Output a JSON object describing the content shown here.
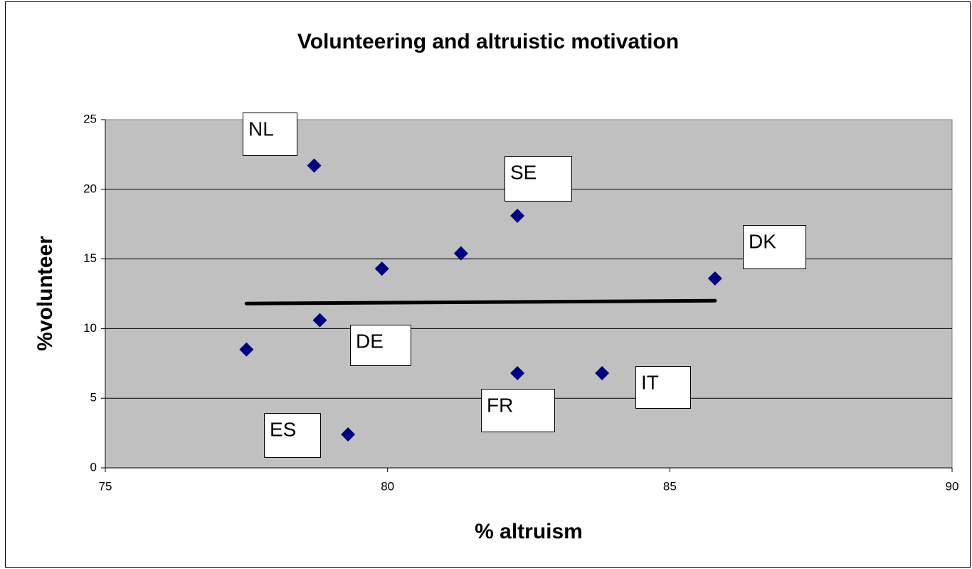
{
  "chart_data": {
    "type": "scatter",
    "title": "Volunteering and altruistic motivation",
    "xlabel": "% altruism",
    "ylabel": "%volunteer",
    "x": [
      77.5,
      78.7,
      78.8,
      79.3,
      79.9,
      81.3,
      82.3,
      82.3,
      83.8,
      85.8
    ],
    "series": [
      {
        "color": "#000080",
        "values": [
          8.5,
          21.7,
          10.6,
          2.4,
          14.3,
          15.4,
          18.1,
          6.8,
          6.8,
          13.6
        ]
      }
    ],
    "trendline": {
      "x": [
        77.5,
        85.8
      ],
      "values": [
        11.8,
        12.0
      ],
      "color": "#000000"
    },
    "annotations": [
      "NL",
      "SE",
      "DK",
      "DE",
      "IT",
      "FR",
      "ES"
    ],
    "xlim": [
      75,
      90
    ],
    "xticks": [
      75,
      80,
      85,
      90
    ],
    "ylim": [
      0,
      25
    ],
    "yticks": [
      0,
      5,
      10,
      15,
      20,
      25
    ],
    "grid": true,
    "plot_background": "#c0c0c0"
  }
}
